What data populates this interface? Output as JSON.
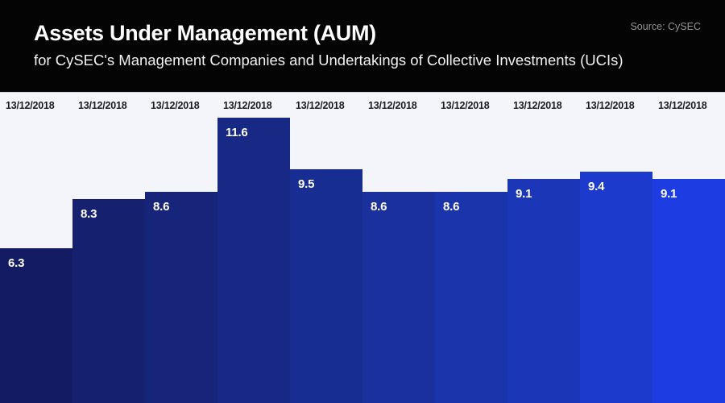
{
  "header": {
    "title": "Assets Under Management (AUM)",
    "subtitle": "for CySEC's Management Companies and Undertakings of Collective Investments (UCIs)",
    "source": "Source: CySEC"
  },
  "chart_data": {
    "type": "bar",
    "title": "Assets Under Management (AUM)",
    "subtitle": "for CySEC's Management Companies and Undertakings of Collective Investments (UCIs)",
    "source": "Source: CySEC",
    "categories": [
      "13/12/2018",
      "13/12/2018",
      "13/12/2018",
      "13/12/2018",
      "13/12/2018",
      "13/12/2018",
      "13/12/2018",
      "13/12/2018",
      "13/12/2018",
      "13/12/2018"
    ],
    "values": [
      6.3,
      8.3,
      8.6,
      11.6,
      9.5,
      8.6,
      8.6,
      9.1,
      9.4,
      9.1
    ],
    "value_labels": [
      "6.3",
      "8.3",
      "8.6",
      "11.6",
      "9.5",
      "8.6",
      "8.6",
      "9.1",
      "9.4",
      "9.1"
    ],
    "xlabel": "",
    "ylabel": "",
    "ylim": [
      0,
      12.62
    ],
    "grid": false,
    "legend": "none",
    "bar_gap": 0,
    "bar_colors": [
      "#131b63",
      "#15206e",
      "#162479",
      "#172985",
      "#182d92",
      "#19309d",
      "#1a34ab",
      "#1b37b8",
      "#1c3acc",
      "#1d3de2"
    ],
    "colors": {
      "header_background": "#040404",
      "chart_background": "#f4f5fb",
      "title_text": "#ffffff",
      "source_text": "#949599",
      "date_label_text": "#191c23",
      "value_label_text": "#ffffff"
    }
  }
}
